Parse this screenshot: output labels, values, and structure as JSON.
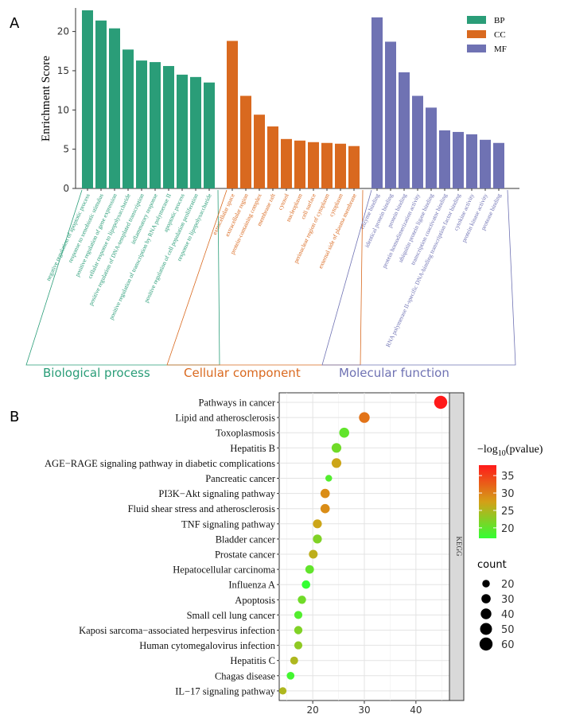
{
  "panel_a": {
    "label": "A",
    "ylabel": "Enrichment Score",
    "legend": [
      {
        "key": "BP",
        "label": "BP",
        "color": "#2a9d78"
      },
      {
        "key": "CC",
        "label": "CC",
        "color": "#d9691f"
      },
      {
        "key": "MF",
        "label": "MF",
        "color": "#6f72b3"
      }
    ],
    "group_labels": [
      {
        "key": "BP",
        "label": "Biological process"
      },
      {
        "key": "CC",
        "label": "Cellular component"
      },
      {
        "key": "MF",
        "label": "Molecular function"
      }
    ]
  },
  "panel_b": {
    "label": "B",
    "facet": "KEGG",
    "color_legend_title_prefix": "−log",
    "color_legend_title_sub": "10",
    "color_legend_title_suffix": "(pvalue)",
    "size_legend_title": "count",
    "colors": {
      "low": "#33ff33",
      "mid": "#d4a017",
      "high": "#ff1a1a"
    }
  },
  "chart_data": [
    {
      "type": "bar",
      "ylabel": "Enrichment Score",
      "ylim": [
        0,
        23
      ],
      "yticks": [
        0,
        5,
        10,
        15,
        20
      ],
      "legend_position": "top-right",
      "grid": false,
      "series": [
        {
          "name": "BP",
          "categories": [
            "negative regulation of apoptotic process",
            "response to xenobiotic stimulus",
            "positive regulation of gene expression",
            "cellular response to lipopolysaccharide",
            "positive regulation of DNA-templated transcription",
            "inflammatory response",
            "positive regulation of transcription by RNA polymerase II",
            "apoptotic process",
            "positive regulation of cell population proliferation",
            "response to lipopolysaccharide"
          ],
          "values": [
            22.7,
            21.4,
            20.4,
            17.7,
            16.3,
            16.1,
            15.6,
            14.5,
            14.2,
            13.5
          ]
        },
        {
          "name": "CC",
          "categories": [
            "extracellular space",
            "extracellular region",
            "protein-containing complex",
            "membrane raft",
            "cytosol",
            "nucleoplasm",
            "cell surface",
            "perinuclear region of cytoplasm",
            "cytoplasm",
            "external side of plasma membrane"
          ],
          "values": [
            18.8,
            11.8,
            9.4,
            7.9,
            6.3,
            6.1,
            5.9,
            5.8,
            5.7,
            5.4
          ]
        },
        {
          "name": "MF",
          "categories": [
            "enzyme binding",
            "identical protein binding",
            "protein binding",
            "protein homodimerization activity",
            "ubiquitin protein ligase binding",
            "transcription coactivator binding",
            "RNA polymerase II-specific DNA-binding transcription factor binding",
            "cytokine activity",
            "protein kinase activity",
            "protease binding"
          ],
          "values": [
            21.8,
            18.7,
            14.8,
            11.8,
            10.3,
            7.4,
            7.2,
            6.9,
            6.2,
            5.8
          ]
        }
      ]
    },
    {
      "type": "scatter",
      "facet": "KEGG",
      "xlim": [
        13.5,
        46.5
      ],
      "xticks": [
        20,
        30,
        40
      ],
      "grid": true,
      "color_title": "−log10(pvalue)",
      "color_ticks": [
        20,
        25,
        30,
        35
      ],
      "color_range": [
        17,
        38
      ],
      "size_title": "count",
      "size_ticks": [
        20,
        30,
        40,
        50,
        60
      ],
      "categories": [
        "Pathways in cancer",
        "Lipid and atherosclerosis",
        "Toxoplasmosis",
        "Hepatitis B",
        "AGE−RAGE signaling pathway in diabetic complications",
        "Pancreatic cancer",
        "PI3K−Akt signaling pathway",
        "Fluid shear stress and atherosclerosis",
        "TNF signaling pathway",
        "Bladder cancer",
        "Prostate cancer",
        "Hepatocellular carcinoma",
        "Influenza A",
        "Apoptosis",
        "Small cell lung cancer",
        "Kaposi sarcoma−associated herpesvirus infection",
        "Human cytomegalovirus infection",
        "Hepatitis C",
        "Chagas disease",
        "IL−17 signaling pathway"
      ],
      "x": [
        44.8,
        30.0,
        26.1,
        24.6,
        24.6,
        23.1,
        22.4,
        22.4,
        20.9,
        20.9,
        20.1,
        19.4,
        18.7,
        17.9,
        17.2,
        17.2,
        17.2,
        16.4,
        15.7,
        14.2
      ],
      "color": [
        38,
        31,
        20,
        21,
        27,
        19,
        29,
        29,
        27,
        22,
        26,
        20,
        17,
        21,
        19,
        22,
        23,
        25,
        18,
        25
      ],
      "size": [
        60,
        40,
        35,
        33,
        33,
        16,
        30,
        30,
        28,
        28,
        27,
        26,
        25,
        24,
        23,
        24,
        23,
        22,
        21,
        19
      ]
    }
  ]
}
